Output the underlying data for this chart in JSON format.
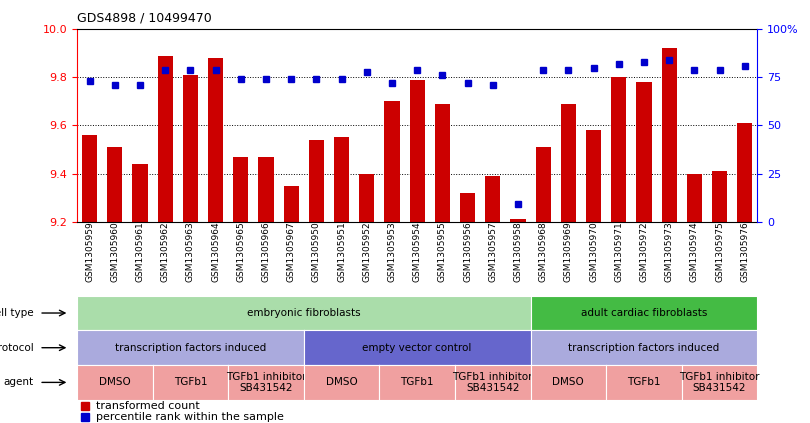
{
  "title": "GDS4898 / 10499470",
  "samples": [
    "GSM1305959",
    "GSM1305960",
    "GSM1305961",
    "GSM1305962",
    "GSM1305963",
    "GSM1305964",
    "GSM1305965",
    "GSM1305966",
    "GSM1305967",
    "GSM1305950",
    "GSM1305951",
    "GSM1305952",
    "GSM1305953",
    "GSM1305954",
    "GSM1305955",
    "GSM1305956",
    "GSM1305957",
    "GSM1305958",
    "GSM1305968",
    "GSM1305969",
    "GSM1305970",
    "GSM1305971",
    "GSM1305972",
    "GSM1305973",
    "GSM1305974",
    "GSM1305975",
    "GSM1305976"
  ],
  "bar_values": [
    9.56,
    9.51,
    9.44,
    9.89,
    9.81,
    9.88,
    9.47,
    9.47,
    9.35,
    9.54,
    9.55,
    9.4,
    9.7,
    9.79,
    9.69,
    9.32,
    9.39,
    9.21,
    9.51,
    9.69,
    9.58,
    9.8,
    9.78,
    9.92,
    9.4,
    9.41,
    9.61
  ],
  "pct_values": [
    73,
    71,
    71,
    79,
    79,
    79,
    74,
    74,
    74,
    74,
    74,
    78,
    72,
    79,
    76,
    72,
    71,
    9,
    79,
    79,
    80,
    82,
    83,
    84,
    79,
    79,
    81
  ],
  "ylim_left": [
    9.2,
    10.0
  ],
  "ylim_right": [
    0,
    100
  ],
  "yticks_left": [
    9.2,
    9.4,
    9.6,
    9.8,
    10.0
  ],
  "yticks_right": [
    0,
    25,
    50,
    75,
    100
  ],
  "ytick_labels_right": [
    "0",
    "25",
    "50",
    "75",
    "100%"
  ],
  "bar_color": "#cc0000",
  "dot_color": "#0000cc",
  "bar_width": 0.6,
  "cell_type_groups": [
    {
      "label": "embryonic fibroblasts",
      "start": 0,
      "end": 18,
      "color": "#aaddaa"
    },
    {
      "label": "adult cardiac fibroblasts",
      "start": 18,
      "end": 27,
      "color": "#44bb44"
    }
  ],
  "protocol_groups": [
    {
      "label": "transcription factors induced",
      "start": 0,
      "end": 9,
      "color": "#aaaadd"
    },
    {
      "label": "empty vector control",
      "start": 9,
      "end": 18,
      "color": "#6666cc"
    },
    {
      "label": "transcription factors induced",
      "start": 18,
      "end": 27,
      "color": "#aaaadd"
    }
  ],
  "agent_groups": [
    {
      "label": "DMSO",
      "start": 0,
      "end": 3,
      "color": "#f0a0a0"
    },
    {
      "label": "TGFb1",
      "start": 3,
      "end": 6,
      "color": "#f0a0a0"
    },
    {
      "label": "TGFb1 inhibitor\nSB431542",
      "start": 6,
      "end": 9,
      "color": "#f0a0a0"
    },
    {
      "label": "DMSO",
      "start": 9,
      "end": 12,
      "color": "#f0a0a0"
    },
    {
      "label": "TGFb1",
      "start": 12,
      "end": 15,
      "color": "#f0a0a0"
    },
    {
      "label": "TGFb1 inhibitor\nSB431542",
      "start": 15,
      "end": 18,
      "color": "#f0a0a0"
    },
    {
      "label": "DMSO",
      "start": 18,
      "end": 21,
      "color": "#f0a0a0"
    },
    {
      "label": "TGFb1",
      "start": 21,
      "end": 24,
      "color": "#f0a0a0"
    },
    {
      "label": "TGFb1 inhibitor\nSB431542",
      "start": 24,
      "end": 27,
      "color": "#f0a0a0"
    }
  ],
  "legend_items": [
    {
      "color": "#cc0000",
      "label": "transformed count"
    },
    {
      "color": "#0000cc",
      "label": "percentile rank within the sample"
    }
  ],
  "row_labels": [
    "cell type",
    "protocol",
    "agent"
  ]
}
